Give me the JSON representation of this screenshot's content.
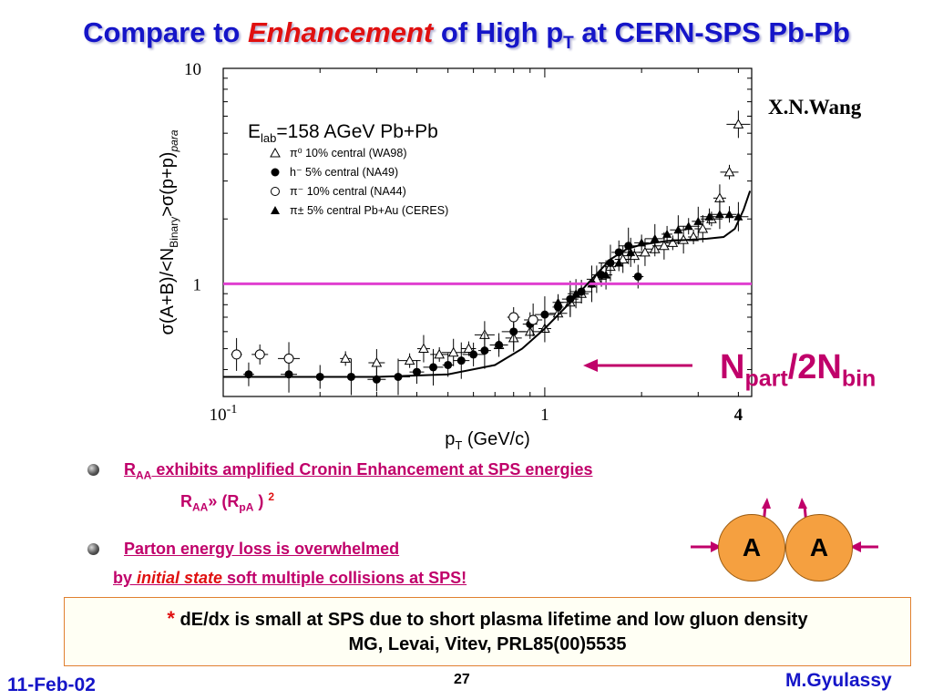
{
  "slide": {
    "title_part1": "Compare to ",
    "title_emph": "Enhancement",
    "title_part2": " of High p",
    "title_sub": "T",
    "title_part3": " at CERN-SPS Pb-Pb",
    "author_label": "X.N.Wang",
    "npart_main": "N",
    "npart_sub1": "part",
    "npart_mid": "/2N",
    "npart_sub2": "bin",
    "bullet1": {
      "r": "R",
      "r_sub": "AA",
      "text": " exhibits amplified Cronin Enhancement  at SPS energies",
      "formula_r": "R",
      "formula_sub1": "AA",
      "formula_mid": "» (R",
      "formula_sub2": "pA",
      "formula_end": " ) ",
      "formula_sup": "2"
    },
    "bullet2": {
      "text": "Parton energy loss is overwhelmed",
      "line2_lead": "by ",
      "line2_emph": "initial state",
      "line2_rest": " soft multiple collisions at SPS!"
    },
    "box": {
      "star": "*",
      "line1": "  dE/dx is small at SPS due to short plasma lifetime and low gluon density",
      "line2": "MG, Levai, Vitev, PRL85(00)5535"
    },
    "nucleus_a_left": "A",
    "nucleus_a_right": "A",
    "footer": {
      "date": "11-Feb-02",
      "page": "27",
      "author": "M.Gyulassy"
    },
    "colors": {
      "title": "#1515c8",
      "accent": "#e01010",
      "text": "#c0006a",
      "reference_line": "#e040d0",
      "nucleus": "#f5a040"
    }
  },
  "chart_data": {
    "type": "scatter",
    "xlabel": "p_T (GeV/c)",
    "ylabel": "σ(A+B)/<N_Binary>σ(p+p)_para",
    "xscale": "log",
    "yscale": "log",
    "xlim": [
      0.1,
      4.4
    ],
    "ylim": [
      0.3,
      10
    ],
    "x_tick_labels": [
      {
        "value": 0.1,
        "base": "10",
        "exp": "-1"
      },
      {
        "value": 1,
        "base": "1",
        "exp": ""
      },
      {
        "value": 4,
        "base": "4",
        "exp": ""
      }
    ],
    "y_tick_labels": [
      {
        "value": 10,
        "label": "10"
      },
      {
        "value": 1,
        "label": "1"
      }
    ],
    "legend": {
      "placement": "top-left",
      "title_main": "E",
      "title_sub": "lab",
      "title_rest": "=158 AGeV Pb+Pb",
      "entries": [
        {
          "marker": "triangle-open",
          "label": "π⁰ 10% central (WA98)"
        },
        {
          "marker": "circle-filled",
          "label": "h⁻ 5% central (NA49)"
        },
        {
          "marker": "circle-open",
          "label": "π⁻ 10% central (NA44)"
        },
        {
          "marker": "triangle-filled",
          "label": "π± 5% central Pb+Au (CERES)"
        }
      ]
    },
    "reference_line": {
      "y": 1
    },
    "series": [
      {
        "name": "π⁰ 10% central (WA98)",
        "marker": "triangle-open",
        "points": [
          [
            0.24,
            0.45
          ],
          [
            0.3,
            0.43
          ],
          [
            0.38,
            0.44
          ],
          [
            0.42,
            0.5
          ],
          [
            0.47,
            0.47
          ],
          [
            0.52,
            0.48
          ],
          [
            0.58,
            0.5
          ],
          [
            0.65,
            0.58
          ],
          [
            0.72,
            0.52
          ],
          [
            0.8,
            0.56
          ],
          [
            0.9,
            0.6
          ],
          [
            1.0,
            0.62
          ],
          [
            1.1,
            0.73
          ],
          [
            1.2,
            0.82
          ],
          [
            1.3,
            0.9
          ],
          [
            1.45,
            1.05
          ],
          [
            1.6,
            1.2
          ],
          [
            1.75,
            1.3
          ],
          [
            1.9,
            1.35
          ],
          [
            2.05,
            1.4
          ],
          [
            2.2,
            1.45
          ],
          [
            2.35,
            1.5
          ],
          [
            2.5,
            1.55
          ],
          [
            2.7,
            1.6
          ],
          [
            2.9,
            1.65
          ],
          [
            3.1,
            1.8
          ],
          [
            3.3,
            2.0
          ],
          [
            3.5,
            2.5
          ],
          [
            3.75,
            3.3
          ],
          [
            4.0,
            5.5
          ]
        ]
      },
      {
        "name": "h⁻ 5% central (NA49)",
        "marker": "circle-filled",
        "points": [
          [
            0.12,
            0.38
          ],
          [
            0.16,
            0.38
          ],
          [
            0.2,
            0.37
          ],
          [
            0.25,
            0.37
          ],
          [
            0.3,
            0.36
          ],
          [
            0.35,
            0.37
          ],
          [
            0.4,
            0.39
          ],
          [
            0.45,
            0.41
          ],
          [
            0.5,
            0.42
          ],
          [
            0.55,
            0.44
          ],
          [
            0.6,
            0.47
          ],
          [
            0.65,
            0.49
          ],
          [
            0.72,
            0.52
          ],
          [
            0.8,
            0.6
          ],
          [
            0.9,
            0.65
          ],
          [
            1.0,
            0.72
          ],
          [
            1.1,
            0.78
          ],
          [
            1.2,
            0.85
          ],
          [
            1.3,
            0.92
          ],
          [
            1.4,
            1.0
          ],
          [
            1.5,
            1.1
          ],
          [
            1.6,
            1.25
          ],
          [
            1.7,
            1.4
          ],
          [
            1.82,
            1.5
          ],
          [
            1.95,
            1.08
          ]
        ]
      },
      {
        "name": "π⁻ 10% central (NA44)",
        "marker": "circle-open",
        "points": [
          [
            0.11,
            0.47
          ],
          [
            0.13,
            0.47
          ],
          [
            0.16,
            0.45
          ],
          [
            0.8,
            0.7
          ],
          [
            0.92,
            0.68
          ]
        ]
      },
      {
        "name": "π± 5% central Pb+Au (CERES)",
        "marker": "triangle-filled",
        "points": [
          [
            1.1,
            0.82
          ],
          [
            1.25,
            0.9
          ],
          [
            1.4,
            1.0
          ],
          [
            1.55,
            1.1
          ],
          [
            1.7,
            1.25
          ],
          [
            1.85,
            1.4
          ],
          [
            2.0,
            1.55
          ],
          [
            2.2,
            1.62
          ],
          [
            2.4,
            1.7
          ],
          [
            2.6,
            1.78
          ],
          [
            2.8,
            1.85
          ],
          [
            3.0,
            1.95
          ],
          [
            3.25,
            2.05
          ],
          [
            3.5,
            2.1
          ],
          [
            3.75,
            2.1
          ],
          [
            4.0,
            2.05
          ]
        ]
      }
    ],
    "curve": {
      "points": [
        [
          0.1,
          0.37
        ],
        [
          0.3,
          0.37
        ],
        [
          0.5,
          0.38
        ],
        [
          0.7,
          0.42
        ],
        [
          0.85,
          0.5
        ],
        [
          1.0,
          0.62
        ],
        [
          1.2,
          0.82
        ],
        [
          1.4,
          1.05
        ],
        [
          1.6,
          1.3
        ],
        [
          1.8,
          1.45
        ],
        [
          2.0,
          1.52
        ],
        [
          2.4,
          1.58
        ],
        [
          2.8,
          1.6
        ],
        [
          3.2,
          1.62
        ],
        [
          3.6,
          1.65
        ],
        [
          3.9,
          1.8
        ],
        [
          4.15,
          2.2
        ],
        [
          4.35,
          2.7
        ]
      ]
    }
  }
}
